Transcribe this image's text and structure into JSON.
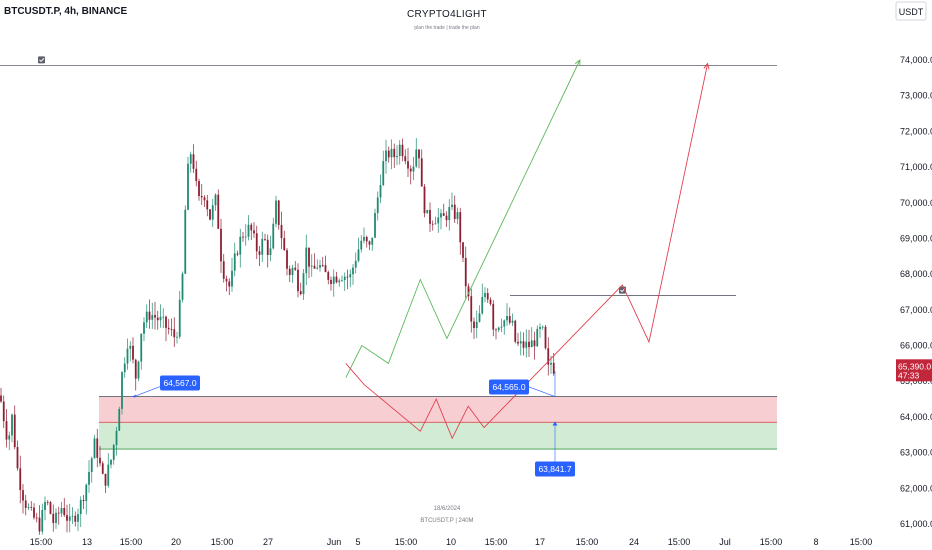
{
  "header": {
    "symbol": "BTCUSDT.P, 4h, BINANCE",
    "brand": "CRYPTO4LIGHT",
    "tagline": "plan the trade | trade the plan",
    "currency": "USDT"
  },
  "footer": {
    "date": "18/6/2024",
    "info": "BTCUSDT.P | 240M"
  },
  "chart_data": {
    "type": "candlestick",
    "y_unit": "USDT",
    "ylim": [
      60700,
      75300
    ],
    "y_ticks": [
      "61,000.0",
      "62,000.0",
      "63,000.0",
      "64,000.0",
      "65,000.0",
      "66,000.0",
      "67,000.0",
      "68,000.0",
      "69,000.0",
      "70,000.0",
      "71,000.0",
      "72,000.0",
      "73,000.0",
      "74,000.0"
    ],
    "x_ticks": [
      "15:00",
      "13",
      "15:00",
      "20",
      "15:00",
      "27",
      "Jun",
      "5",
      "15:00",
      "10",
      "15:00",
      "17",
      "15:00",
      "24",
      "15:00",
      "Jul",
      "15:00",
      "8",
      "15:00"
    ],
    "current_price": "65,390.0",
    "countdown": "47:33",
    "price_labels": [
      "64,567.0",
      "64,565.0",
      "63,841.7"
    ],
    "zones": [
      {
        "name": "supply",
        "from": 63850,
        "to": 64570,
        "color": "#f7cfd3"
      },
      {
        "name": "demand",
        "from": 63100,
        "to": 63850,
        "color": "#d2ebd4"
      }
    ],
    "levels": [
      {
        "name": "top-target",
        "price": 73850,
        "color": "#5d606b"
      },
      {
        "name": "range-high",
        "price": 67400,
        "color": "#5d606b"
      }
    ],
    "green_path": [
      [
        18.2,
        65100
      ],
      [
        18.8,
        66000
      ],
      [
        19.8,
        65500
      ],
      [
        21.0,
        67850
      ],
      [
        22.0,
        66200
      ],
      [
        27.0,
        74000
      ]
    ],
    "red_path": [
      [
        18.2,
        65500
      ],
      [
        18.9,
        64900
      ],
      [
        21.0,
        63600
      ],
      [
        21.6,
        64500
      ],
      [
        22.2,
        63400
      ],
      [
        22.8,
        64300
      ],
      [
        23.4,
        63700
      ],
      [
        28.6,
        67700
      ],
      [
        29.6,
        66100
      ],
      [
        31.8,
        73900
      ]
    ],
    "candle_colors": {
      "up": "#1f8a70",
      "down": "#8e1f33"
    }
  }
}
